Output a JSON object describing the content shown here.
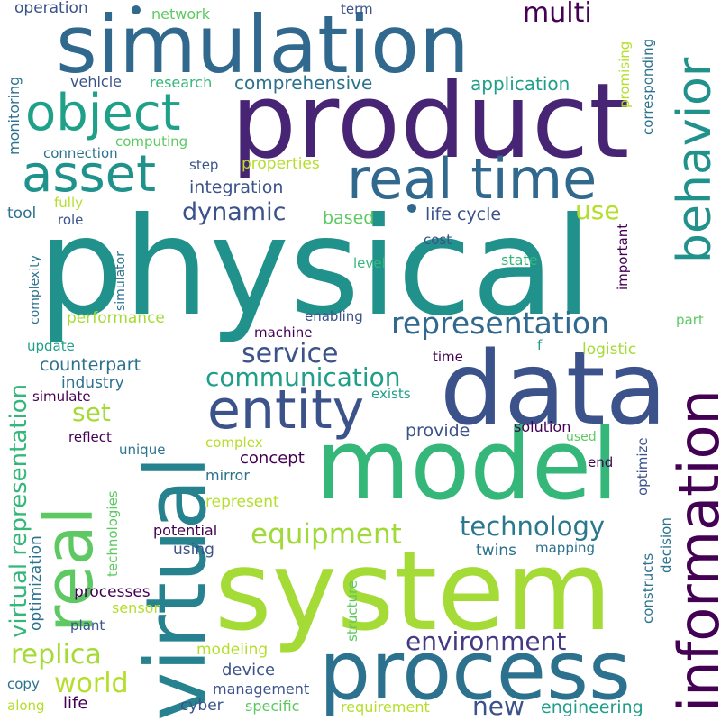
{
  "palette": {
    "dark_purple": "#440154",
    "indigo": "#3b528b",
    "slate_blue": "#31688e",
    "teal": "#21918c",
    "sea_green": "#2ab07f",
    "green": "#5ec962",
    "lime": "#b5de2b",
    "yellow": "#d5e21a"
  },
  "words": [
    {
      "text": "physical",
      "color": "#21918c"
    },
    {
      "text": "product",
      "color": "#482475"
    },
    {
      "text": "simulation",
      "color": "#31688e"
    },
    {
      "text": "system",
      "color": "#a5db36"
    },
    {
      "text": "model",
      "color": "#35b779"
    },
    {
      "text": "data",
      "color": "#3b528b"
    },
    {
      "text": "virtual",
      "color": "#26828e"
    },
    {
      "text": "process",
      "color": "#2c728e"
    },
    {
      "text": "real",
      "color": "#5ec962"
    },
    {
      "text": "information",
      "color": "#440154"
    },
    {
      "text": "real time",
      "color": "#31688e"
    },
    {
      "text": "behavior",
      "color": "#21918c"
    },
    {
      "text": "entity",
      "color": "#3b528b"
    },
    {
      "text": "object",
      "color": "#1fa088"
    },
    {
      "text": "asset",
      "color": "#20928c"
    },
    {
      "text": "representation",
      "color": "#31688e"
    },
    {
      "text": "virtual representation",
      "color": "#35b779"
    },
    {
      "text": "communication",
      "color": "#1f9e89"
    },
    {
      "text": "technology",
      "color": "#2a788e"
    },
    {
      "text": "equipment",
      "color": "#a0da39"
    },
    {
      "text": "service",
      "color": "#3b528b"
    },
    {
      "text": "environment",
      "color": "#443a83"
    },
    {
      "text": "replica",
      "color": "#a5db36"
    },
    {
      "text": "world",
      "color": "#b5de2b"
    },
    {
      "text": "multi",
      "color": "#440154"
    },
    {
      "text": "dynamic",
      "color": "#3b528b"
    },
    {
      "text": "new",
      "color": "#3b528b"
    },
    {
      "text": "use",
      "color": "#b5de2b"
    },
    {
      "text": "set",
      "color": "#a5db36"
    },
    {
      "text": "comprehensive",
      "color": "#2c728e"
    },
    {
      "text": "application",
      "color": "#1f9e89"
    },
    {
      "text": "integration",
      "color": "#3b528b"
    },
    {
      "text": "life cycle",
      "color": "#3b528b"
    },
    {
      "text": "performance",
      "color": "#a5db36"
    },
    {
      "text": "counterpart",
      "color": "#2c728e"
    },
    {
      "text": "industry",
      "color": "#2c728e"
    },
    {
      "text": "engineering",
      "color": "#1f9e89"
    },
    {
      "text": "concept",
      "color": "#440154"
    },
    {
      "text": "provide",
      "color": "#3b528b"
    },
    {
      "text": "optimization",
      "color": "#2c728e"
    },
    {
      "text": "processes",
      "color": "#440154"
    },
    {
      "text": "device",
      "color": "#3b528b"
    },
    {
      "text": "management",
      "color": "#3b528b"
    },
    {
      "text": "modeling",
      "color": "#b5de2b"
    },
    {
      "text": "operation",
      "color": "#3b528b"
    },
    {
      "text": "network",
      "color": "#5ec962"
    },
    {
      "text": "term",
      "color": "#3b528b"
    },
    {
      "text": "vehicle",
      "color": "#3b528b"
    },
    {
      "text": "research",
      "color": "#35b779"
    },
    {
      "text": "monitoring",
      "color": "#2c728e"
    },
    {
      "text": "connection",
      "color": "#2c728e"
    },
    {
      "text": "computing",
      "color": "#5ec962"
    },
    {
      "text": "step",
      "color": "#3b528b"
    },
    {
      "text": "properties",
      "color": "#b5de2b"
    },
    {
      "text": "fully",
      "color": "#b5de2b"
    },
    {
      "text": "tool",
      "color": "#2c728e"
    },
    {
      "text": "role",
      "color": "#3b528b"
    },
    {
      "text": "based",
      "color": "#5ec962"
    },
    {
      "text": "cost",
      "color": "#3b528b"
    },
    {
      "text": "state",
      "color": "#35b779"
    },
    {
      "text": "level",
      "color": "#35b779"
    },
    {
      "text": "complexity",
      "color": "#2c728e"
    },
    {
      "text": "simulator",
      "color": "#2c728e"
    },
    {
      "text": "machine",
      "color": "#440154"
    },
    {
      "text": "enabling",
      "color": "#3b528b"
    },
    {
      "text": "part",
      "color": "#5ec962"
    },
    {
      "text": "logistic",
      "color": "#a5db36"
    },
    {
      "text": "update",
      "color": "#1f9e89"
    },
    {
      "text": "time",
      "color": "#440154"
    },
    {
      "text": "simulate",
      "color": "#440154"
    },
    {
      "text": "exists",
      "color": "#1f9e89"
    },
    {
      "text": "solution",
      "color": "#440154"
    },
    {
      "text": "used",
      "color": "#5ec962"
    },
    {
      "text": "reflect",
      "color": "#440154"
    },
    {
      "text": "unique",
      "color": "#2c728e"
    },
    {
      "text": "complex",
      "color": "#b5de2b"
    },
    {
      "text": "mirror",
      "color": "#2c728e"
    },
    {
      "text": "end",
      "color": "#440154"
    },
    {
      "text": "represent",
      "color": "#b5de2b"
    },
    {
      "text": "potential",
      "color": "#440154"
    },
    {
      "text": "using",
      "color": "#3b528b"
    },
    {
      "text": "twins",
      "color": "#2c728e"
    },
    {
      "text": "mapping",
      "color": "#2c728e"
    },
    {
      "text": "sensor",
      "color": "#b5de2b"
    },
    {
      "text": "plant",
      "color": "#3b528b"
    },
    {
      "text": "copy",
      "color": "#2c728e"
    },
    {
      "text": "along",
      "color": "#b5de2b"
    },
    {
      "text": "life",
      "color": "#440154"
    },
    {
      "text": "cyber",
      "color": "#3b528b"
    },
    {
      "text": "specific",
      "color": "#5ec962"
    },
    {
      "text": "requirement",
      "color": "#b5de2b"
    },
    {
      "text": "promising",
      "color": "#b5de2b"
    },
    {
      "text": "corresponding",
      "color": "#2c728e"
    },
    {
      "text": "important",
      "color": "#440154"
    },
    {
      "text": "optimize",
      "color": "#3b528b"
    },
    {
      "text": "decision",
      "color": "#2c728e"
    },
    {
      "text": "constructs",
      "color": "#2c728e"
    },
    {
      "text": "structure",
      "color": "#5ec962"
    },
    {
      "text": "technologies",
      "color": "#5ec962"
    },
    {
      "text": "f",
      "color": "#1f9e89"
    }
  ]
}
